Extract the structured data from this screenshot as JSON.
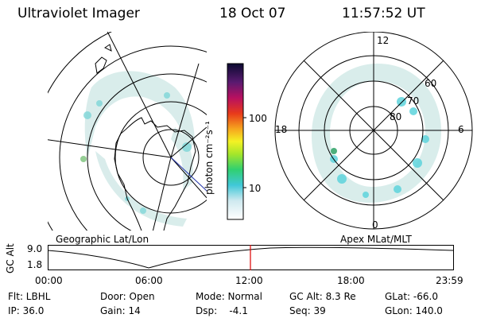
{
  "header": {
    "instrument": "Ultraviolet Imager",
    "date": "18 Oct 07",
    "time": "11:57:52 UT"
  },
  "colorbar": {
    "unit_label": "photon cm⁻²s⁻¹",
    "ticks": [
      "100",
      "10"
    ]
  },
  "geo_panel": {
    "label": "Geographic Lat/Lon"
  },
  "apex_panel": {
    "label": "Apex MLat/MLT",
    "mlt_labels": [
      "12",
      "18",
      "6",
      "0"
    ],
    "mlat_labels": [
      "60",
      "70",
      "80"
    ]
  },
  "timeline": {
    "axis_label": "GC Alt",
    "y_ticks": [
      "9.0",
      "1.8"
    ],
    "x_ticks": [
      "00:00",
      "06:00",
      "12:00",
      "18:00",
      "23:59"
    ],
    "marker_color": "#dd0000"
  },
  "info": {
    "flt": "Flt: LBHL",
    "ip": "IP: 36.0",
    "door": "Door: Open",
    "gain": "Gain: 14",
    "mode": "Mode: Normal",
    "dsp": "Dsp:    -4.1",
    "gcalt": "GC Alt: 8.3 Re",
    "seq": "Seq: 39",
    "glat": "GLat: -66.0",
    "glon": "GLon: 140.0"
  }
}
